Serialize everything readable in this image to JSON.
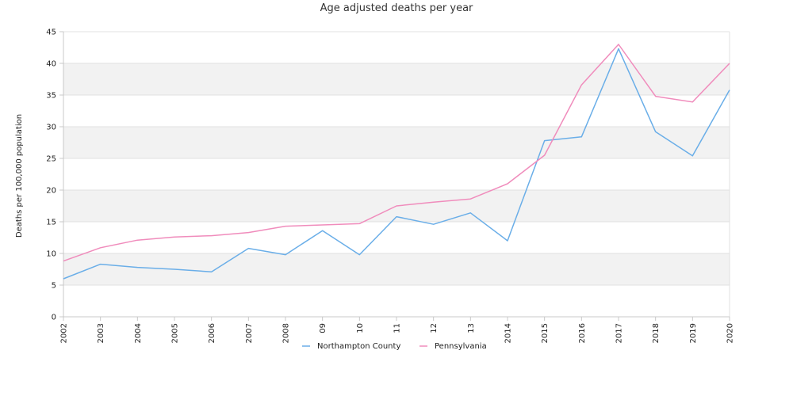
{
  "chart_data": {
    "type": "line",
    "title": "Age adjusted deaths per year",
    "xlabel": "",
    "ylabel": "Deaths per 100,000 population",
    "ylim": [
      0,
      45
    ],
    "yticks": [
      0,
      5,
      10,
      15,
      20,
      25,
      30,
      35,
      40,
      45
    ],
    "grid": "alternating horizontal bands",
    "legend_position": "bottom",
    "categories": [
      "2002",
      "2003",
      "2004",
      "2005",
      "2006",
      "2007",
      "2008",
      "09",
      "10",
      "11",
      "12",
      "13",
      "2014",
      "2015",
      "2016",
      "2017",
      "2018",
      "2019",
      "2020"
    ],
    "series": [
      {
        "name": "Northampton County",
        "color": "#6aaee8",
        "values": [
          6.0,
          8.3,
          7.8,
          7.5,
          7.1,
          10.8,
          9.8,
          13.6,
          9.8,
          15.8,
          14.6,
          16.4,
          12.0,
          27.8,
          28.4,
          42.3,
          29.2,
          25.4,
          35.8
        ]
      },
      {
        "name": "Pennsylvania",
        "color": "#f08cbc",
        "values": [
          8.8,
          10.9,
          12.1,
          12.6,
          12.8,
          13.3,
          14.3,
          14.5,
          14.7,
          17.5,
          18.1,
          18.6,
          21.0,
          25.5,
          36.6,
          43.0,
          34.8,
          33.9,
          40.0
        ]
      }
    ]
  }
}
